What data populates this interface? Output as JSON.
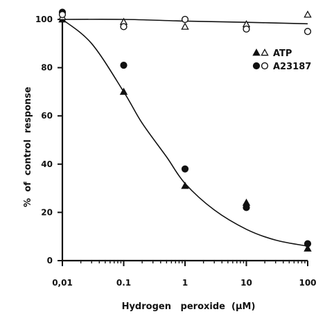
{
  "chart_data": {
    "type": "scatter",
    "title": "",
    "xlabel": "Hydrogen   peroxide  (µM)",
    "ylabel": "%  of  control  response",
    "x_scale": "log",
    "xlim": [
      0.01,
      100
    ],
    "ylim": [
      0,
      100
    ],
    "x_ticks": [
      0.01,
      0.1,
      1,
      10,
      100
    ],
    "x_tick_labels": [
      "0,01",
      "0.1",
      "1",
      "10",
      "100"
    ],
    "y_ticks": [
      0,
      20,
      40,
      60,
      80,
      100
    ],
    "y_tick_labels": [
      "0",
      "20",
      "40",
      "60",
      "80",
      "100"
    ],
    "grid": false,
    "legend_position": "top-right",
    "legend": [
      {
        "label": "ATP",
        "markers": [
          "filled-triangle",
          "open-triangle"
        ]
      },
      {
        "label": "A23187",
        "markers": [
          "filled-circle",
          "open-circle"
        ]
      }
    ],
    "series": [
      {
        "marker": "filled-triangle",
        "color": "#111111",
        "points": [
          [
            0.01,
            100
          ],
          [
            0.1,
            70
          ],
          [
            1,
            31
          ],
          [
            10,
            24
          ],
          [
            100,
            5
          ]
        ]
      },
      {
        "marker": "filled-circle",
        "color": "#111111",
        "points": [
          [
            0.01,
            103
          ],
          [
            0.1,
            81
          ],
          [
            1,
            38
          ],
          [
            10,
            22
          ],
          [
            100,
            7
          ]
        ]
      },
      {
        "marker": "open-triangle",
        "color": "#111111",
        "points": [
          [
            0.01,
            101
          ],
          [
            0.1,
            99
          ],
          [
            1,
            97
          ],
          [
            10,
            98
          ],
          [
            100,
            102
          ]
        ]
      },
      {
        "marker": "open-circle",
        "color": "#111111",
        "points": [
          [
            0.01,
            102
          ],
          [
            0.1,
            97
          ],
          [
            1,
            100
          ],
          [
            10,
            96
          ],
          [
            100,
            95
          ]
        ]
      }
    ],
    "curves": [
      {
        "type": "fit",
        "points": [
          [
            0.01,
            100
          ],
          [
            0.1,
            100
          ],
          [
            1,
            99.3
          ],
          [
            10,
            98.8
          ],
          [
            100,
            98.2
          ]
        ]
      },
      {
        "type": "fit",
        "points": [
          [
            0.01,
            100
          ],
          [
            0.03,
            90
          ],
          [
            0.1,
            70
          ],
          [
            0.2,
            57
          ],
          [
            0.5,
            43
          ],
          [
            1,
            32
          ],
          [
            3,
            21
          ],
          [
            10,
            13
          ],
          [
            30,
            8.5
          ],
          [
            100,
            6
          ]
        ]
      }
    ]
  }
}
